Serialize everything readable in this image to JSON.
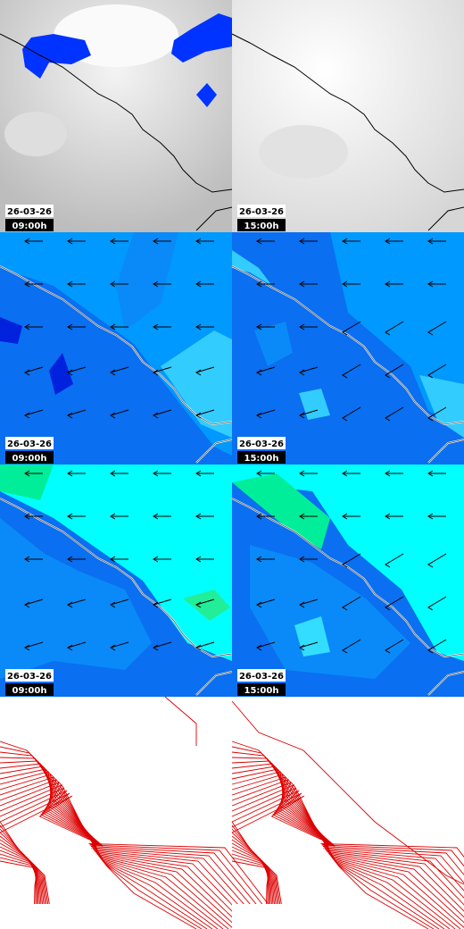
{
  "panels": [
    {
      "date": "26-03-26",
      "time": "09:00h"
    },
    {
      "date": "26-03-26",
      "time": "15:00h"
    },
    {
      "date": "26-03-26",
      "time": "09:00h"
    },
    {
      "date": "26-03-26",
      "time": "15:00h"
    },
    {
      "date": "26-03-26",
      "time": "09:00h"
    },
    {
      "date": "26-03-26",
      "time": "15:00h"
    }
  ]
}
